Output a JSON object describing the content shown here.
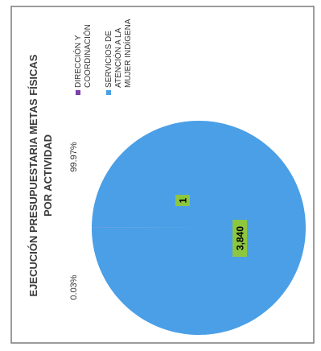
{
  "chart_data": {
    "type": "pie",
    "title": "EJECUCIÓN PRESUPUESTARIA METAS FÍSICAS",
    "subtitle": "POR ACTIVIDAD",
    "slices": [
      {
        "label": "DIRECCIÓN Y COORDINACIÓN",
        "legend_lines": [
          "DIRECCIÓN Y",
          "COORDINACIÓN"
        ],
        "value": 1,
        "value_label": "1",
        "percent_label": "0.03%",
        "color": "#7b3fa8"
      },
      {
        "label": "SERVICIOS DE ATENCIÓN A LA MUJER INDÍGENA",
        "legend_lines": [
          "SERVICIOS DE",
          "ATENCIÓN A LA",
          "MUJER INDÍGENA"
        ],
        "value": 3840,
        "value_label": "3,840",
        "percent_label": "99.97%",
        "color": "#4a9fe6"
      }
    ],
    "data_label_color": "#8dc63f",
    "legend_position": "right"
  }
}
